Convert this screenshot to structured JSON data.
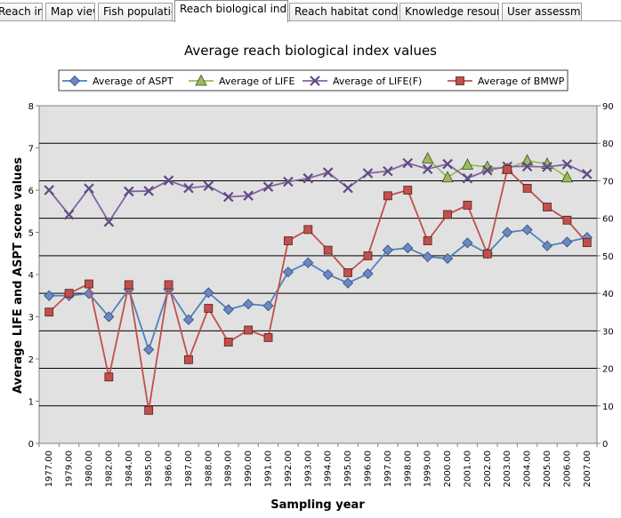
{
  "tabs": [
    {
      "label": "Reach info",
      "active": false
    },
    {
      "label": "Map view",
      "active": false
    },
    {
      "label": "Fish populations",
      "active": false
    },
    {
      "label": "Reach biological indices",
      "active": true
    },
    {
      "label": "Reach habitat condition",
      "active": false
    },
    {
      "label": "Knowledge resources",
      "active": false
    },
    {
      "label": "User assessment",
      "active": false
    }
  ],
  "chart_data": {
    "type": "line",
    "title": "Average reach biological index values",
    "xlabel": "Sampling year",
    "ylabel": "Average LIFE  and ASPT score values",
    "ylim": [
      0,
      8
    ],
    "y2lim": [
      0,
      90
    ],
    "grid": "horizontal",
    "legend_position": "top",
    "plot_background": "#e1e1e1",
    "categories": [
      "1977.00",
      "1979.00",
      "1980.00",
      "1982.00",
      "1984.00",
      "1985.00",
      "1986.00",
      "1987.00",
      "1988.00",
      "1989.00",
      "1990.00",
      "1991.00",
      "1992.00",
      "1993.00",
      "1994.00",
      "1995.00",
      "1996.00",
      "1997.00",
      "1998.00",
      "1999.00",
      "2000.00",
      "2001.00",
      "2002.00",
      "2003.00",
      "2004.00",
      "2005.00",
      "2006.00",
      "2007.00"
    ],
    "series": [
      {
        "name": "Average of ASPT",
        "axis": "left",
        "color": "#4f81bd",
        "marker": "diamond",
        "marker_color": "#6b87c4",
        "values": [
          3.5,
          3.5,
          3.55,
          3.0,
          3.65,
          2.22,
          3.65,
          2.93,
          3.57,
          3.17,
          3.3,
          3.26,
          4.06,
          4.28,
          4.0,
          3.8,
          4.02,
          4.58,
          4.63,
          4.42,
          4.38,
          4.75,
          4.5,
          5.0,
          5.06,
          4.68,
          4.77,
          4.88
        ]
      },
      {
        "name": "Average of LIFE",
        "axis": "left",
        "color": "#9bbb59",
        "marker": "triangle",
        "marker_color": "#9bbb59",
        "values": [
          null,
          null,
          null,
          null,
          null,
          null,
          null,
          null,
          null,
          null,
          null,
          null,
          null,
          null,
          null,
          null,
          null,
          null,
          null,
          6.75,
          6.3,
          6.6,
          6.55,
          6.5,
          6.7,
          6.62,
          6.3,
          null
        ]
      },
      {
        "name": "Average of LIFE(F)",
        "axis": "left",
        "color": "#8064a2",
        "marker": "x",
        "marker_color": "#5e4b82",
        "values": [
          6.0,
          5.42,
          6.04,
          5.25,
          5.97,
          5.98,
          6.23,
          6.05,
          6.1,
          5.84,
          5.87,
          6.08,
          6.2,
          6.28,
          6.42,
          6.05,
          6.4,
          6.45,
          6.64,
          6.5,
          6.62,
          6.28,
          6.47,
          6.56,
          6.56,
          6.55,
          6.61,
          6.38
        ]
      },
      {
        "name": "Average of BMWP",
        "axis": "right",
        "color": "#c0504d",
        "marker": "square",
        "marker_color": "#c0504d",
        "values": [
          35,
          40,
          42.5,
          17.7,
          42.3,
          8.8,
          42.3,
          22.3,
          36,
          27,
          30.2,
          28.2,
          54,
          57,
          51.5,
          45.5,
          50,
          66,
          67.5,
          54,
          61,
          63.5,
          50.5,
          73,
          68,
          63,
          59.5,
          53.5
        ]
      }
    ],
    "y_ticks": [
      "0",
      "1",
      "2",
      "3",
      "4",
      "5",
      "6",
      "7",
      "8"
    ],
    "y2_ticks": [
      "0",
      "10",
      "20",
      "30",
      "40",
      "50",
      "60",
      "70",
      "80",
      "90"
    ]
  }
}
